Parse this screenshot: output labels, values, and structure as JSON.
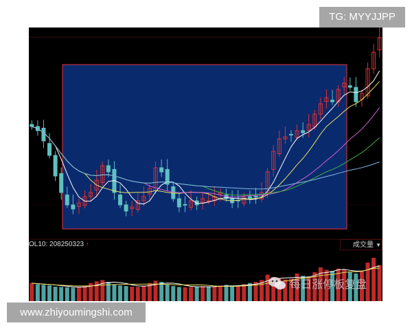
{
  "overlay": {
    "tag": "TG: MYYJJPP",
    "site": "www.zhiyoumingshi.com"
  },
  "volume_panel": {
    "label": "OL10: 208250323",
    "arrow": "↑",
    "selector": "成交量",
    "chevron_icon": "chevron-down-icon"
  },
  "watermark": {
    "text": "每日涨停板复盘",
    "icon": "wechat-icon"
  },
  "colors": {
    "up": "#e03030",
    "down": "#5fc0c0",
    "highlight_box": "#0a2a6e",
    "highlight_border": "#c0303a",
    "ma5": "#ffffff",
    "ma10": "#e8e060",
    "ma20": "#d060d0",
    "ma30": "#40b040",
    "ma60": "#80b8e0"
  },
  "chart_data": {
    "type": "candlestick",
    "title": "",
    "grid": false,
    "close": [
      52,
      50,
      45,
      38,
      28,
      20,
      14,
      12,
      15,
      18,
      20,
      26,
      33,
      30,
      20,
      14,
      11,
      13,
      16,
      18,
      22,
      32,
      30,
      24,
      17,
      13,
      14,
      16,
      14,
      17,
      16,
      18,
      20,
      17,
      15,
      16,
      18,
      17,
      18,
      20,
      30,
      40,
      46,
      47,
      48,
      50,
      49,
      53,
      58,
      63,
      66,
      64,
      70,
      73,
      71,
      64,
      68,
      80,
      88,
      95
    ],
    "volume": [
      150,
      140,
      135,
      130,
      120,
      118,
      115,
      112,
      118,
      125,
      150,
      165,
      175,
      160,
      140,
      130,
      125,
      120,
      118,
      130,
      150,
      170,
      160,
      140,
      125,
      118,
      115,
      118,
      120,
      125,
      118,
      122,
      130,
      135,
      125,
      130,
      140,
      150,
      160,
      175,
      220,
      200,
      190,
      180,
      185,
      230,
      210,
      200,
      240,
      280,
      260,
      250,
      270,
      260,
      240,
      230,
      250,
      320,
      360,
      300
    ],
    "moving_averages": [
      5,
      10,
      20,
      30,
      60
    ],
    "highlight_range": [
      6,
      54
    ]
  }
}
